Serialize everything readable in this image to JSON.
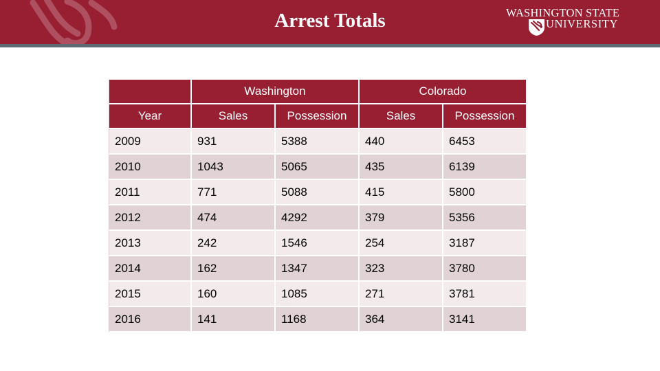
{
  "header": {
    "title": "Arrest Totals",
    "logo_line1": "WASHINGTON STATE",
    "logo_line2": "UNIVERSITY"
  },
  "table": {
    "group_headers": [
      "",
      "Washington",
      "Colorado"
    ],
    "column_headers": [
      "Year",
      "Sales",
      "Possession",
      "Sales",
      "Possession"
    ],
    "rows": [
      [
        "2009",
        "931",
        "5388",
        "440",
        "6453"
      ],
      [
        "2010",
        "1043",
        "5065",
        "435",
        "6139"
      ],
      [
        "2011",
        "771",
        "5088",
        "415",
        "5800"
      ],
      [
        "2012",
        "474",
        "4292",
        "379",
        "5356"
      ],
      [
        "2013",
        "242",
        "1546",
        "254",
        "3187"
      ],
      [
        "2014",
        "162",
        "1347",
        "323",
        "3780"
      ],
      [
        "2015",
        "160",
        "1085",
        "271",
        "3781"
      ],
      [
        "2016",
        "141",
        "1168",
        "364",
        "3141"
      ]
    ]
  },
  "colors": {
    "crimson": "#981e32",
    "gray_rule": "#5e6a71",
    "row_light": "#f3eaec",
    "row_dark": "#e0d2d5"
  }
}
